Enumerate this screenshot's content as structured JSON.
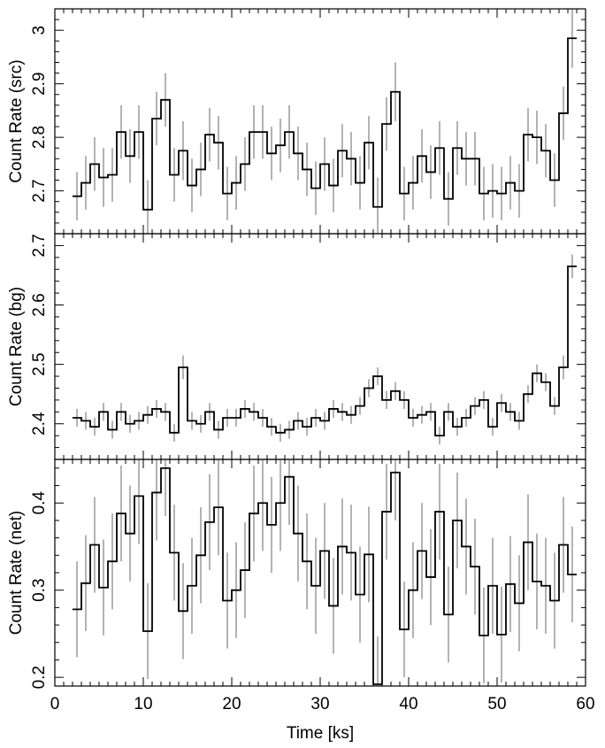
{
  "chart_data": {
    "type": "line",
    "style": "step histogram with vertical error bars",
    "colors": {
      "step_line": "#000000",
      "error_bar": "#a0a0a0",
      "frame": "#000000"
    },
    "shared_x_axis": {
      "label": "Time [ks]",
      "lim": [
        0,
        60
      ],
      "major_ticks": [
        0,
        10,
        20,
        30,
        40,
        50,
        60
      ],
      "tick_labels": [
        "0",
        "10",
        "20",
        "30",
        "40",
        "50",
        "60"
      ]
    },
    "bins": {
      "start": 2,
      "width": 1.0,
      "error_bar_x": [
        2.5,
        3.5,
        4.5,
        5.5,
        6.5,
        7.5,
        8.5,
        9.5,
        10.5,
        11.5,
        12.5,
        13.5,
        14.5,
        15.5,
        16.5,
        17.5,
        18.5,
        19.5,
        20.5,
        21.5,
        22.5,
        23.5,
        24.5,
        25.5,
        26.5,
        27.5,
        28.5,
        29.5,
        30.5,
        31.5,
        32.5,
        33.5,
        34.5,
        35.5,
        36.5,
        37.5,
        38.5,
        39.5,
        40.5,
        41.5,
        42.5,
        43.5,
        44.5,
        45.5,
        46.5,
        47.5,
        48.5,
        49.5,
        50.5,
        51.5,
        52.5,
        53.5,
        54.5,
        55.5,
        56.5,
        57.5,
        58.5
      ]
    },
    "panels": [
      {
        "ylabel": "Count Rate (src)",
        "ylim": [
          2.62,
          3.04
        ],
        "major_ticks": [
          2.7,
          2.8,
          2.9,
          3.0
        ],
        "tick_labels": [
          "2.7",
          "2.8",
          "2.9",
          "3"
        ],
        "values": [
          2.69,
          2.715,
          2.75,
          2.725,
          2.73,
          2.81,
          2.765,
          2.81,
          2.665,
          2.835,
          2.87,
          2.73,
          2.775,
          2.71,
          2.74,
          2.805,
          2.79,
          2.695,
          2.715,
          2.75,
          2.81,
          2.81,
          2.77,
          2.785,
          2.81,
          2.77,
          2.74,
          2.705,
          2.75,
          2.71,
          2.775,
          2.76,
          2.715,
          2.79,
          2.67,
          2.825,
          2.885,
          2.695,
          2.715,
          2.765,
          2.735,
          2.78,
          2.685,
          2.78,
          2.76,
          2.76,
          2.695,
          2.7,
          2.695,
          2.715,
          2.7,
          2.805,
          2.8,
          2.775,
          2.72,
          2.845,
          2.985
        ],
        "errors": [
          0.045,
          0.05,
          0.05,
          0.055,
          0.05,
          0.05,
          0.05,
          0.05,
          0.055,
          0.05,
          0.05,
          0.05,
          0.055,
          0.05,
          0.05,
          0.05,
          0.05,
          0.05,
          0.05,
          0.05,
          0.05,
          0.05,
          0.05,
          0.05,
          0.05,
          0.05,
          0.05,
          0.05,
          0.05,
          0.05,
          0.05,
          0.05,
          0.05,
          0.05,
          0.055,
          0.05,
          0.055,
          0.05,
          0.05,
          0.05,
          0.05,
          0.05,
          0.05,
          0.05,
          0.05,
          0.05,
          0.05,
          0.05,
          0.05,
          0.05,
          0.05,
          0.05,
          0.05,
          0.05,
          0.05,
          0.05,
          0.055
        ]
      },
      {
        "ylabel": "Count Rate (bg)",
        "ylim": [
          2.34,
          2.72
        ],
        "major_ticks": [
          2.4,
          2.5,
          2.6,
          2.7
        ],
        "tick_labels": [
          "2.4",
          "2.5",
          "2.6",
          "2.7"
        ],
        "values": [
          2.41,
          2.405,
          2.395,
          2.42,
          2.39,
          2.42,
          2.4,
          2.405,
          2.415,
          2.425,
          2.42,
          2.385,
          2.495,
          2.405,
          2.4,
          2.42,
          2.39,
          2.41,
          2.41,
          2.425,
          2.42,
          2.41,
          2.395,
          2.385,
          2.39,
          2.405,
          2.395,
          2.41,
          2.405,
          2.425,
          2.42,
          2.415,
          2.43,
          2.46,
          2.48,
          2.44,
          2.455,
          2.44,
          2.41,
          2.415,
          2.42,
          2.38,
          2.42,
          2.395,
          2.41,
          2.43,
          2.44,
          2.395,
          2.435,
          2.42,
          2.405,
          2.45,
          2.485,
          2.47,
          2.43,
          2.495,
          2.665
        ],
        "errors": [
          0.015,
          0.015,
          0.015,
          0.015,
          0.015,
          0.015,
          0.015,
          0.015,
          0.015,
          0.015,
          0.015,
          0.015,
          0.02,
          0.015,
          0.015,
          0.015,
          0.015,
          0.015,
          0.015,
          0.015,
          0.015,
          0.015,
          0.015,
          0.015,
          0.015,
          0.015,
          0.015,
          0.015,
          0.015,
          0.015,
          0.015,
          0.015,
          0.015,
          0.015,
          0.015,
          0.015,
          0.015,
          0.015,
          0.015,
          0.015,
          0.015,
          0.015,
          0.015,
          0.015,
          0.015,
          0.015,
          0.015,
          0.015,
          0.015,
          0.015,
          0.015,
          0.015,
          0.015,
          0.015,
          0.015,
          0.02,
          0.02
        ]
      },
      {
        "ylabel": "Count Rate (net)",
        "ylim": [
          0.19,
          0.45
        ],
        "major_ticks": [
          0.2,
          0.3,
          0.4
        ],
        "tick_labels": [
          "0.2",
          "0.3",
          "0.4"
        ],
        "values": [
          0.278,
          0.308,
          0.352,
          0.303,
          0.333,
          0.388,
          0.365,
          0.408,
          0.253,
          0.412,
          0.44,
          0.343,
          0.276,
          0.305,
          0.34,
          0.378,
          0.395,
          0.288,
          0.3,
          0.323,
          0.388,
          0.4,
          0.375,
          0.4,
          0.43,
          0.365,
          0.333,
          0.305,
          0.345,
          0.282,
          0.35,
          0.343,
          0.295,
          0.341,
          0.192,
          0.39,
          0.435,
          0.255,
          0.3,
          0.345,
          0.315,
          0.39,
          0.272,
          0.38,
          0.35,
          0.327,
          0.248,
          0.305,
          0.249,
          0.307,
          0.285,
          0.355,
          0.31,
          0.305,
          0.288,
          0.352,
          0.318
        ],
        "errors": [
          0.055,
          0.055,
          0.055,
          0.055,
          0.055,
          0.055,
          0.055,
          0.055,
          0.055,
          0.055,
          0.055,
          0.055,
          0.055,
          0.055,
          0.055,
          0.055,
          0.055,
          0.055,
          0.055,
          0.055,
          0.055,
          0.055,
          0.055,
          0.055,
          0.055,
          0.055,
          0.055,
          0.055,
          0.055,
          0.055,
          0.055,
          0.055,
          0.055,
          0.055,
          0.055,
          0.055,
          0.055,
          0.055,
          0.055,
          0.055,
          0.055,
          0.055,
          0.055,
          0.055,
          0.055,
          0.055,
          0.055,
          0.055,
          0.055,
          0.055,
          0.055,
          0.055,
          0.055,
          0.055,
          0.055,
          0.055,
          0.055
        ]
      }
    ]
  }
}
